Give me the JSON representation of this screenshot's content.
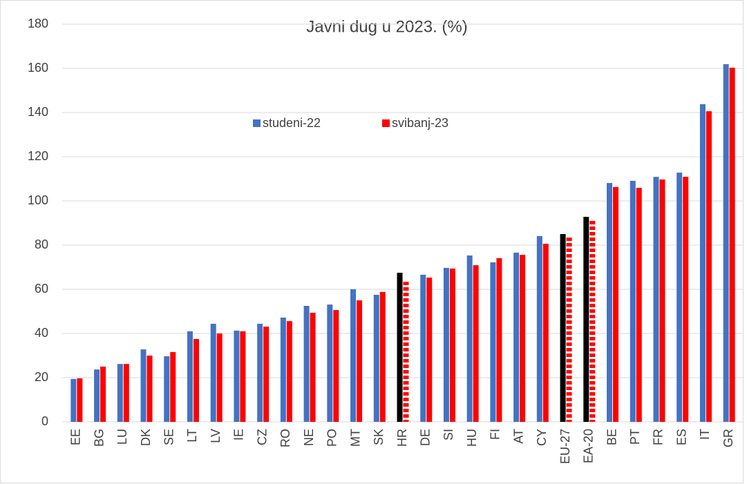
{
  "chart_data": {
    "type": "bar",
    "title": "Javni dug u 2023. (%)",
    "categories": [
      "EE",
      "BG",
      "LU",
      "DK",
      "SE",
      "LT",
      "LV",
      "IE",
      "CZ",
      "RO",
      "NE",
      "PO",
      "MT",
      "SK",
      "HR",
      "DE",
      "SI",
      "HU",
      "FI",
      "AT",
      "CY",
      "EU-27",
      "EA-20",
      "BE",
      "PT",
      "FR",
      "ES",
      "IT",
      "GR"
    ],
    "series": [
      {
        "name": "studeni-22",
        "color": "#4472c4",
        "colors": [
          "#4472c4",
          "#4472c4",
          "#4472c4",
          "#4472c4",
          "#4472c4",
          "#4472c4",
          "#4472c4",
          "#4472c4",
          "#4472c4",
          "#4472c4",
          "#4472c4",
          "#4472c4",
          "#4472c4",
          "#4472c4",
          "#000000",
          "#4472c4",
          "#4472c4",
          "#4472c4",
          "#4472c4",
          "#4472c4",
          "#4472c4",
          "#000000",
          "#000000",
          "#4472c4",
          "#4472c4",
          "#4472c4",
          "#4472c4",
          "#4472c4",
          "#4472c4"
        ],
        "values": [
          19.4,
          23.7,
          26.2,
          32.8,
          29.7,
          41,
          44.4,
          41.3,
          44.4,
          47.2,
          52.5,
          53.1,
          60,
          57.5,
          67.5,
          66.6,
          69.7,
          75.3,
          72.2,
          76.6,
          84.1,
          85,
          92.8,
          108.1,
          109.1,
          110.9,
          112.8,
          143.8,
          161.9
        ]
      },
      {
        "name": "svibanj-23",
        "color": "#ff0000",
        "dashed": [
          false,
          false,
          false,
          false,
          false,
          false,
          false,
          false,
          false,
          false,
          false,
          false,
          false,
          false,
          true,
          false,
          false,
          false,
          false,
          false,
          false,
          true,
          true,
          false,
          false,
          false,
          false,
          false,
          false
        ],
        "values": [
          19.7,
          25,
          26.2,
          30,
          31.6,
          37.5,
          40,
          41,
          43.1,
          45.6,
          49.4,
          50.6,
          55,
          58.8,
          63.4,
          65.3,
          69.4,
          70.9,
          74.1,
          75.6,
          80.6,
          83.4,
          91.2,
          106.3,
          105.9,
          109.7,
          110.9,
          140.6,
          160.3
        ]
      }
    ],
    "ylim": [
      0,
      180
    ],
    "yticks": [
      0,
      20,
      40,
      60,
      80,
      100,
      120,
      140,
      160,
      180
    ],
    "grid": true
  }
}
